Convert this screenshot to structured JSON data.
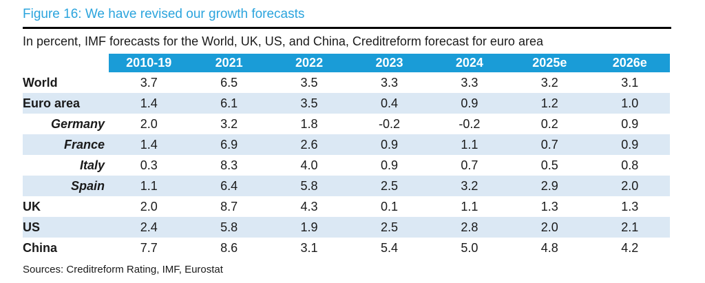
{
  "figure": {
    "title": "Figure 16: We have revised our growth forecasts",
    "subtitle": "In percent, IMF forecasts for the World, UK, US, and China, Creditreform forecast for euro area",
    "sources": "Sources: Creditreform Rating, IMF, Eurostat"
  },
  "colors": {
    "title_accent": "#2BA4DD",
    "header_bg": "#1A9CD7",
    "header_text": "#FFFFFF",
    "row_shade": "#DBE8F4",
    "text": "#1A1A1A",
    "rule": "#000000"
  },
  "chart_data": {
    "type": "table",
    "title": "Figure 16: We have revised our growth forecasts",
    "subtitle": "In percent, IMF forecasts for the World, UK, US, and China, Creditreform forecast for euro area",
    "columns": [
      "2010-19",
      "2021",
      "2022",
      "2023",
      "2024",
      "2025e",
      "2026e"
    ],
    "rows": [
      {
        "label": "World",
        "indent": false,
        "shaded": false,
        "values": [
          "3.7",
          "6.5",
          "3.5",
          "3.3",
          "3.3",
          "3.2",
          "3.1"
        ]
      },
      {
        "label": "Euro area",
        "indent": false,
        "shaded": true,
        "values": [
          "1.4",
          "6.1",
          "3.5",
          "0.4",
          "0.9",
          "1.2",
          "1.0"
        ]
      },
      {
        "label": "Germany",
        "indent": true,
        "shaded": false,
        "values": [
          "2.0",
          "3.2",
          "1.8",
          "-0.2",
          "-0.2",
          "0.2",
          "0.9"
        ]
      },
      {
        "label": "France",
        "indent": true,
        "shaded": true,
        "values": [
          "1.4",
          "6.9",
          "2.6",
          "0.9",
          "1.1",
          "0.7",
          "0.9"
        ]
      },
      {
        "label": "Italy",
        "indent": true,
        "shaded": false,
        "values": [
          "0.3",
          "8.3",
          "4.0",
          "0.9",
          "0.7",
          "0.5",
          "0.8"
        ]
      },
      {
        "label": "Spain",
        "indent": true,
        "shaded": true,
        "values": [
          "1.1",
          "6.4",
          "5.8",
          "2.5",
          "3.2",
          "2.9",
          "2.0"
        ]
      },
      {
        "label": "UK",
        "indent": false,
        "shaded": false,
        "values": [
          "2.0",
          "8.7",
          "4.3",
          "0.1",
          "1.1",
          "1.3",
          "1.3"
        ]
      },
      {
        "label": "US",
        "indent": false,
        "shaded": true,
        "values": [
          "2.4",
          "5.8",
          "1.9",
          "2.5",
          "2.8",
          "2.0",
          "2.1"
        ]
      },
      {
        "label": "China",
        "indent": false,
        "shaded": false,
        "values": [
          "7.7",
          "8.6",
          "3.1",
          "5.4",
          "5.0",
          "4.8",
          "4.2"
        ]
      }
    ],
    "sources": "Sources: Creditreform Rating, IMF, Eurostat",
    "legend": null,
    "grid": false
  }
}
